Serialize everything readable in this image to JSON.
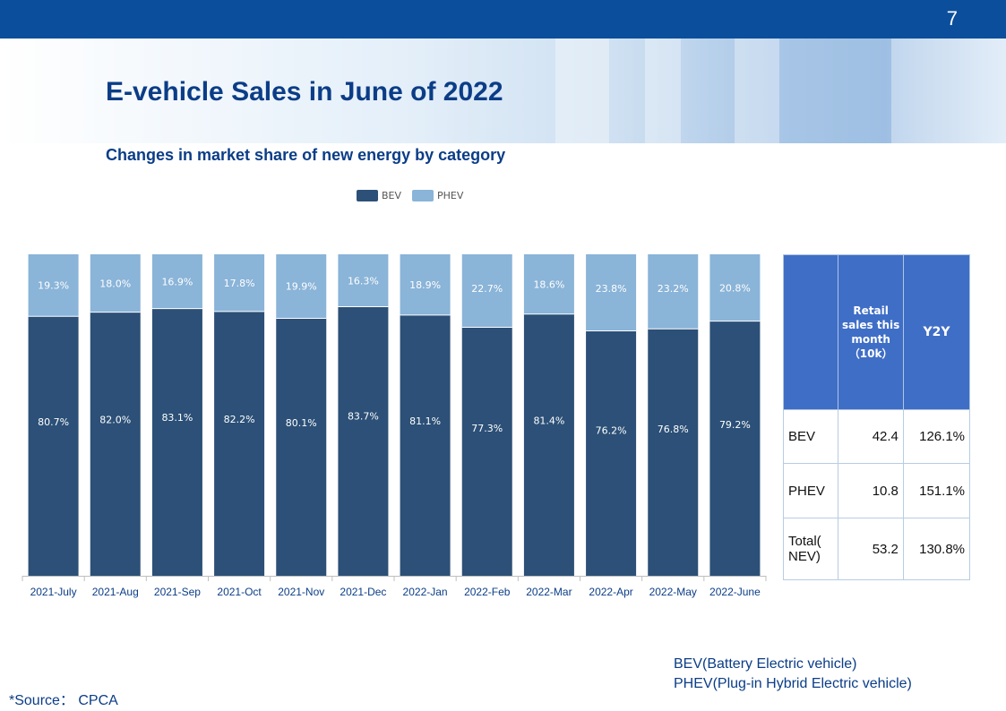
{
  "slide": {
    "page_number": "7",
    "title": "E-vehicle Sales in June of 2022",
    "subtitle": "Changes in market share of new energy by category",
    "source": "*Source： CPCA",
    "footnotes": [
      "BEV(Battery Electric vehicle)",
      "PHEV(Plug-in Hybrid Electric vehicle)"
    ]
  },
  "chart_data": {
    "type": "bar",
    "stacked": true,
    "categories": [
      "2021-July",
      "2021-Aug",
      "2021-Sep",
      "2021-Oct",
      "2021-Nov",
      "2021-Dec",
      "2022-Jan",
      "2022-Feb",
      "2022-Mar",
      "2022-Apr",
      "2022-May",
      "2022-June"
    ],
    "series": [
      {
        "name": "BEV",
        "color": "#2c5077",
        "values": [
          80.7,
          82.0,
          83.1,
          82.2,
          80.1,
          83.7,
          81.1,
          77.3,
          81.4,
          76.2,
          76.8,
          79.2
        ]
      },
      {
        "name": "PHEV",
        "color": "#8ab4d8",
        "values": [
          19.3,
          18.0,
          16.9,
          17.8,
          19.9,
          16.3,
          18.9,
          22.7,
          18.6,
          23.8,
          23.2,
          20.8
        ]
      }
    ],
    "value_unit": "%",
    "ylim": [
      0,
      100
    ],
    "legend_position": "top-center",
    "grid": false
  },
  "table": {
    "headers": [
      "",
      "Retail sales this month（10k）",
      "Y2Y"
    ],
    "rows": [
      {
        "label": "BEV",
        "sales": "42.4",
        "yoy": "126.1%"
      },
      {
        "label": "PHEV",
        "sales": "10.8",
        "yoy": "151.1%"
      },
      {
        "label": "Total( NEV)",
        "sales": "53.2",
        "yoy": "130.8%"
      }
    ]
  }
}
